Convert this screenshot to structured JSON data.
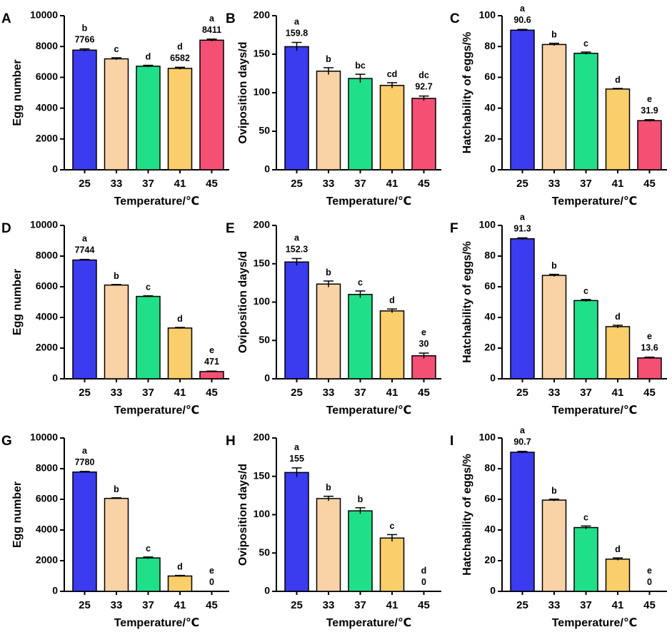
{
  "bar_colors": [
    "#3b3bf0",
    "#f9d2a6",
    "#1fe088",
    "#fbce6c",
    "#f54f74"
  ],
  "chart_data": [
    {
      "panel": "A",
      "type": "bar",
      "categories": [
        "25",
        "33",
        "37",
        "41",
        "45"
      ],
      "values": [
        7766,
        7200,
        6720,
        6582,
        8411
      ],
      "errors": [
        80,
        70,
        60,
        70,
        70
      ],
      "letters": [
        "b",
        "c",
        "d",
        "d",
        "a"
      ],
      "labels": [
        "7766",
        "",
        "",
        "6582",
        "8411"
      ],
      "xlabel": "Temperature/℃",
      "ylabel": "Egg number",
      "ylim": [
        0,
        10000
      ],
      "yticks": [
        0,
        2000,
        4000,
        6000,
        8000,
        10000
      ]
    },
    {
      "panel": "B",
      "type": "bar",
      "categories": [
        "25",
        "33",
        "37",
        "41",
        "45"
      ],
      "values": [
        159.8,
        128,
        118.5,
        109.5,
        92.7
      ],
      "errors": [
        5.5,
        4.5,
        5.5,
        3.5,
        3
      ],
      "letters": [
        "a",
        "b",
        "bc",
        "cd",
        "dc"
      ],
      "labels": [
        "159.8",
        "",
        "",
        "",
        "92.7"
      ],
      "xlabel": "Temperature/℃",
      "ylabel": "Oviposition days/d",
      "ylim": [
        0,
        200
      ],
      "yticks": [
        0,
        50,
        100,
        150,
        200
      ]
    },
    {
      "panel": "C",
      "type": "bar",
      "categories": [
        "25",
        "33",
        "37",
        "41",
        "45"
      ],
      "values": [
        90.6,
        81.3,
        75.6,
        52.4,
        31.9
      ],
      "errors": [
        0.5,
        0.8,
        0.8,
        0.4,
        0.6
      ],
      "letters": [
        "a",
        "b",
        "c",
        "d",
        "e"
      ],
      "labels": [
        "90.6",
        "",
        "",
        "",
        "31.9"
      ],
      "xlabel": "Temperature/℃",
      "ylabel": "Hatchability of eggs/%",
      "ylim": [
        0,
        100
      ],
      "yticks": [
        0,
        20,
        40,
        60,
        80,
        100
      ]
    },
    {
      "panel": "D",
      "type": "bar",
      "categories": [
        "25",
        "33",
        "37",
        "41",
        "45"
      ],
      "values": [
        7744,
        6110,
        5370,
        3310,
        471
      ],
      "errors": [
        40,
        40,
        40,
        40,
        30
      ],
      "letters": [
        "a",
        "b",
        "c",
        "d",
        "e"
      ],
      "labels": [
        "7744",
        "",
        "",
        "",
        "471"
      ],
      "xlabel": "Temperature/℃",
      "ylabel": "Egg number",
      "ylim": [
        0,
        10000
      ],
      "yticks": [
        0,
        2000,
        4000,
        6000,
        8000,
        10000
      ]
    },
    {
      "panel": "E",
      "type": "bar",
      "categories": [
        "25",
        "33",
        "37",
        "41",
        "45"
      ],
      "values": [
        152.3,
        123.5,
        110,
        88.5,
        30
      ],
      "errors": [
        4.5,
        4,
        4.5,
        2.5,
        3.5
      ],
      "letters": [
        "a",
        "b",
        "c",
        "d",
        "e"
      ],
      "labels": [
        "152.3",
        "",
        "",
        "",
        "30"
      ],
      "xlabel": "Temperature/℃",
      "ylabel": "Oviposition days/d",
      "ylim": [
        0,
        200
      ],
      "yticks": [
        0,
        50,
        100,
        150,
        200
      ]
    },
    {
      "panel": "F",
      "type": "bar",
      "categories": [
        "25",
        "33",
        "37",
        "41",
        "45"
      ],
      "values": [
        91.3,
        67.4,
        51,
        34,
        13.6
      ],
      "errors": [
        0.6,
        0.7,
        0.7,
        0.9,
        0.5
      ],
      "letters": [
        "a",
        "b",
        "c",
        "d",
        "e"
      ],
      "labels": [
        "91.3",
        "",
        "",
        "",
        "13.6"
      ],
      "xlabel": "Temperature/℃",
      "ylabel": "Hatchability of eggs/%",
      "ylim": [
        0,
        100
      ],
      "yticks": [
        0,
        20,
        40,
        60,
        80,
        100
      ]
    },
    {
      "panel": "G",
      "type": "bar",
      "categories": [
        "25",
        "33",
        "37",
        "41",
        "45"
      ],
      "values": [
        7780,
        6060,
        2180,
        1000,
        0
      ],
      "errors": [
        40,
        40,
        60,
        40,
        0
      ],
      "letters": [
        "a",
        "b",
        "c",
        "d",
        "e"
      ],
      "labels": [
        "7780",
        "",
        "",
        "",
        "0"
      ],
      "xlabel": "Temperature/℃",
      "ylabel": "Egg number",
      "ylim": [
        0,
        10000
      ],
      "yticks": [
        0,
        2000,
        4000,
        6000,
        8000,
        10000
      ]
    },
    {
      "panel": "H",
      "type": "bar",
      "categories": [
        "25",
        "33",
        "37",
        "41",
        "45"
      ],
      "values": [
        155,
        121,
        105,
        69.5,
        0
      ],
      "errors": [
        6,
        3,
        4,
        4.5,
        0
      ],
      "letters": [
        "a",
        "b",
        "b",
        "c",
        "d"
      ],
      "labels": [
        "155",
        "",
        "",
        "",
        "0"
      ],
      "xlabel": "Temperature/℃",
      "ylabel": "Oviposition days/d",
      "ylim": [
        0,
        200
      ],
      "yticks": [
        0,
        50,
        100,
        150,
        200
      ]
    },
    {
      "panel": "I",
      "type": "bar",
      "categories": [
        "25",
        "33",
        "37",
        "41",
        "45"
      ],
      "values": [
        90.7,
        59.5,
        41.6,
        21,
        0
      ],
      "errors": [
        0.6,
        0.6,
        1,
        0.8,
        0
      ],
      "letters": [
        "a",
        "b",
        "c",
        "d",
        "e"
      ],
      "labels": [
        "90.7",
        "",
        "",
        "",
        "0"
      ],
      "xlabel": "Temperature/℃",
      "ylabel": "Hatchability of eggs/%",
      "ylim": [
        0,
        100
      ],
      "yticks": [
        0,
        20,
        40,
        60,
        80,
        100
      ]
    }
  ]
}
